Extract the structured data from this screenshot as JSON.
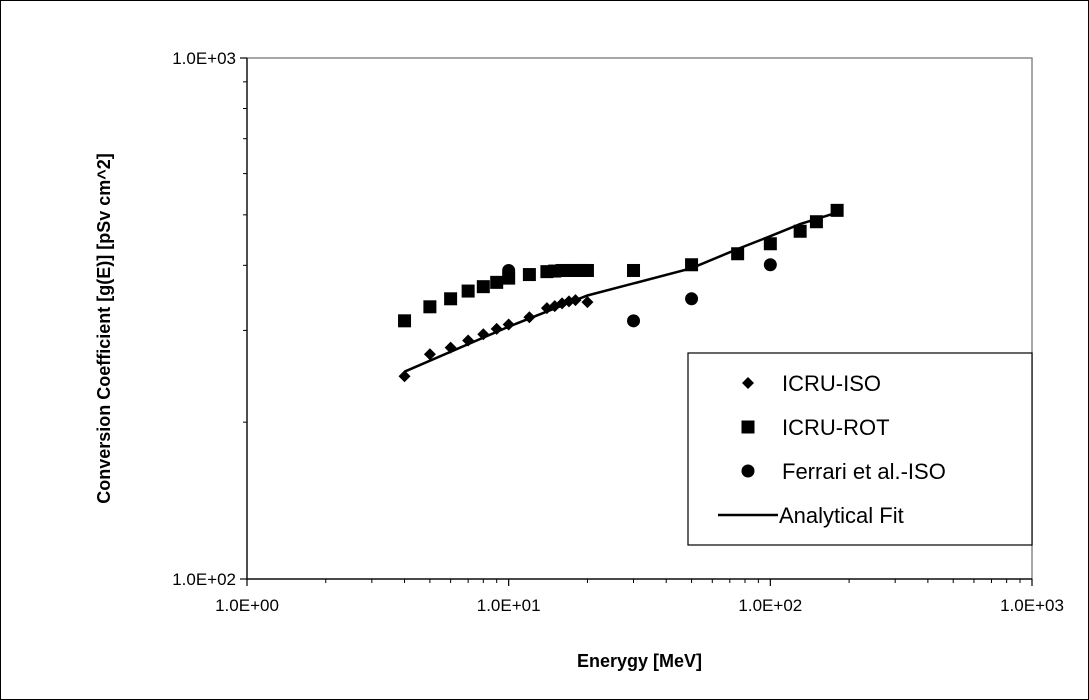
{
  "chart_data": {
    "type": "scatter",
    "xlabel": "Enerygy [MeV]",
    "ylabel": "Conversion Coefficient [g(E)] [pSv cm^2]",
    "xscale": "log",
    "yscale": "log",
    "xlim": [
      1,
      1000
    ],
    "ylim": [
      100,
      1000
    ],
    "xticks": [
      {
        "value": 1,
        "label": "1.0E+00"
      },
      {
        "value": 10,
        "label": "1.0E+01"
      },
      {
        "value": 100,
        "label": "1.0E+02"
      },
      {
        "value": 1000,
        "label": "1.0E+03"
      }
    ],
    "yticks": [
      {
        "value": 100,
        "label": "1.0E+02"
      },
      {
        "value": 1000,
        "label": "1.0E+03"
      }
    ],
    "grid": false,
    "legend_position": "bottom-right",
    "series": [
      {
        "name": "ICRU-ISO",
        "marker": "diamond",
        "color": "#000000",
        "x": [
          4,
          5,
          6,
          7,
          8,
          9,
          10,
          12,
          14,
          15,
          16,
          17,
          18,
          20
        ],
        "y": [
          245,
          270,
          278,
          287,
          295,
          302,
          308,
          318,
          331,
          334,
          338,
          341,
          343,
          340
        ]
      },
      {
        "name": "ICRU-ROT",
        "marker": "square",
        "color": "#000000",
        "x": [
          4,
          5,
          6,
          7,
          8,
          9,
          10,
          12,
          14,
          15,
          16,
          17,
          18,
          19,
          20,
          30,
          50,
          75,
          100,
          130,
          150,
          180
        ],
        "y": [
          313,
          333,
          345,
          357,
          364,
          371,
          378,
          384,
          389,
          390,
          391,
          391,
          391,
          391,
          391,
          391,
          401,
          421,
          440,
          465,
          485,
          510
        ]
      },
      {
        "name": "Ferrari et al.-ISO",
        "marker": "circle",
        "color": "#000000",
        "x": [
          10,
          30,
          50,
          100
        ],
        "y": [
          391,
          313,
          345,
          401
        ]
      },
      {
        "name": "Analytical Fit",
        "marker": "line",
        "color": "#000000",
        "x": [
          4,
          10,
          20,
          50,
          75,
          100,
          130,
          180
        ],
        "y": [
          250,
          305,
          350,
          395,
          430,
          455,
          480,
          505
        ]
      }
    ]
  }
}
